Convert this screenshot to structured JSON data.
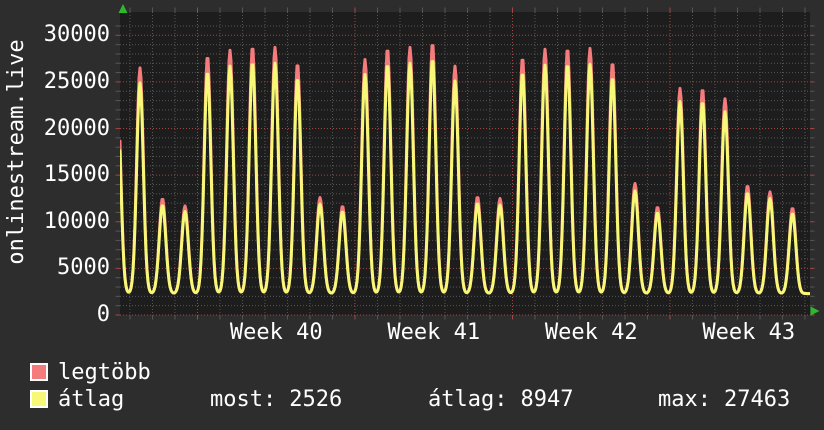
{
  "window": {
    "background": "#2d2d2d"
  },
  "vertical_title": "onlinestream.live",
  "legend": [
    {
      "label": "legtöbb",
      "color": "#f47c7c"
    },
    {
      "label": "átlag",
      "color": "#f8f878"
    }
  ],
  "stats": [
    {
      "label": "most:",
      "value": "2526"
    },
    {
      "label": "átlag:",
      "value": "8947"
    },
    {
      "label": "max:",
      "value": "27463"
    }
  ],
  "chart_data": {
    "type": "line",
    "title": "onlinestream.live",
    "xlabel": "",
    "ylabel": "",
    "ylim": [
      0,
      32500
    ],
    "y_ticks": [
      0,
      5000,
      10000,
      15000,
      20000,
      25000,
      30000
    ],
    "y_minor_step": 1000,
    "x_tick_labels": [
      "Week 40",
      "Week 41",
      "Week 42",
      "Week 43"
    ],
    "grid": {
      "plot_bg": "#1d1d1d",
      "minor_color": "#565656",
      "major_color": "#a24646",
      "axis_arrow_color": "#2db82d",
      "grid_on": true
    },
    "legend_position": "bottom-left",
    "valley_baseline": 2300,
    "days_shown": 31,
    "series": [
      {
        "name": "legtöbb",
        "color": "#f47c7c",
        "daily_peaks": [
          24000,
          26500,
          12500,
          11700,
          27800,
          28400,
          28800,
          28700,
          27000,
          12600,
          11700,
          27400,
          28600,
          28700,
          29200,
          26700,
          12700,
          12500,
          27600,
          28500,
          28600,
          28600,
          27100,
          14100,
          11600,
          24300,
          24300,
          23200,
          13900,
          13200,
          11500
        ]
      },
      {
        "name": "átlag",
        "color": "#f8f878",
        "daily_peaks": [
          22600,
          24900,
          11800,
          11100,
          26100,
          26700,
          27100,
          27000,
          25400,
          11900,
          11100,
          25800,
          26900,
          27000,
          27463,
          25100,
          12000,
          11800,
          26000,
          26800,
          26900,
          26900,
          25500,
          13300,
          11000,
          22900,
          22900,
          21800,
          13100,
          12500,
          10900
        ]
      }
    ],
    "stats": {
      "most": 2526,
      "atlag": 8947,
      "max": 27463
    }
  }
}
